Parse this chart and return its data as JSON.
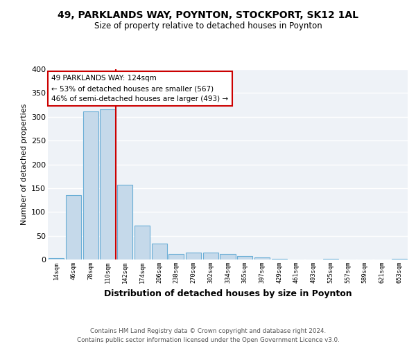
{
  "title1": "49, PARKLANDS WAY, POYNTON, STOCKPORT, SK12 1AL",
  "title2": "Size of property relative to detached houses in Poynton",
  "xlabel": "Distribution of detached houses by size in Poynton",
  "ylabel": "Number of detached properties",
  "bar_labels": [
    "14sqm",
    "46sqm",
    "78sqm",
    "110sqm",
    "142sqm",
    "174sqm",
    "206sqm",
    "238sqm",
    "270sqm",
    "302sqm",
    "334sqm",
    "365sqm",
    "397sqm",
    "429sqm",
    "461sqm",
    "493sqm",
    "525sqm",
    "557sqm",
    "589sqm",
    "621sqm",
    "653sqm"
  ],
  "bar_values": [
    3,
    136,
    311,
    316,
    157,
    71,
    34,
    11,
    15,
    14,
    11,
    8,
    4,
    2,
    0,
    0,
    2,
    0,
    0,
    0,
    2
  ],
  "bar_color": "#c5d9ea",
  "bar_edge_color": "#6aaed6",
  "highlight_bar_index": 3,
  "highlight_color": "#cc0000",
  "annotation_text": "49 PARKLANDS WAY: 124sqm\n← 53% of detached houses are smaller (567)\n46% of semi-detached houses are larger (493) →",
  "annotation_box_color": "white",
  "annotation_box_edge": "#cc0000",
  "footnote": "Contains HM Land Registry data © Crown copyright and database right 2024.\nContains public sector information licensed under the Open Government Licence v3.0.",
  "ylim": [
    0,
    400
  ],
  "yticks": [
    0,
    50,
    100,
    150,
    200,
    250,
    300,
    350,
    400
  ],
  "bg_color": "#eef2f7",
  "grid_color": "white"
}
